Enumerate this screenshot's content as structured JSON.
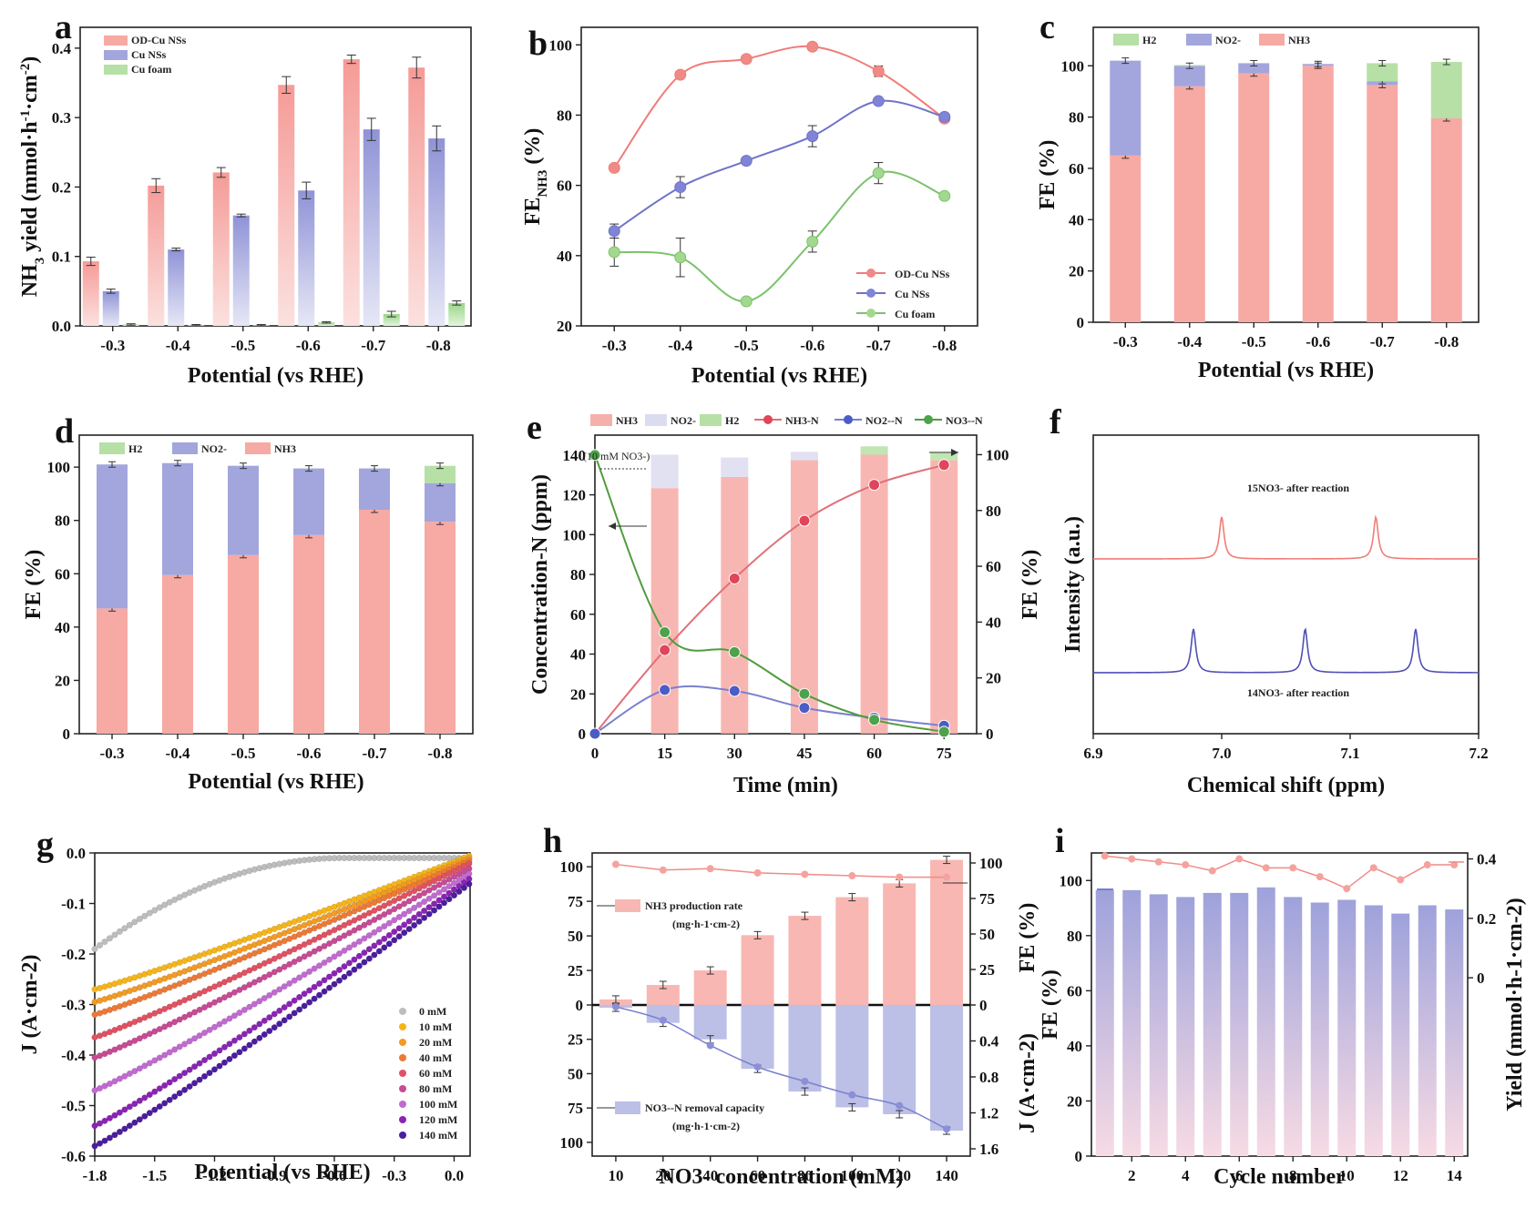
{
  "figure": {
    "colors": {
      "pink": "#f7a9a4",
      "pink_line": "#f07c78",
      "blue": "#a3a6dc",
      "blue_line": "#6f73c8",
      "green": "#b6e0a6",
      "green_line": "#7cc26c",
      "red_dot": "#e0455a",
      "navy_dot": "#4b5cc4",
      "green_dot": "#4da24a"
    }
  },
  "chart_data": [
    {
      "id": "a",
      "panel_label": "a",
      "type": "bar",
      "xlabel": "Potential (vs RHE)",
      "ylabel": "NH3 yield (mmol·h-1·cm-2)",
      "categories": [
        "-0.3",
        "-0.4",
        "-0.5",
        "-0.6",
        "-0.7",
        "-0.8"
      ],
      "ylim": [
        0,
        0.43
      ],
      "yticks": [
        "0.0",
        "0.1",
        "0.2",
        "0.3",
        "0.4"
      ],
      "series": [
        {
          "name": "OD-Cu NSs",
          "values": [
            0.093,
            0.202,
            0.221,
            0.347,
            0.384,
            0.372
          ],
          "err": [
            0.006,
            0.01,
            0.007,
            0.012,
            0.006,
            0.015
          ]
        },
        {
          "name": "Cu NSs",
          "values": [
            0.05,
            0.11,
            0.159,
            0.195,
            0.283,
            0.27
          ],
          "err": [
            0.003,
            0.002,
            0.002,
            0.012,
            0.016,
            0.018
          ]
        },
        {
          "name": "Cu foam",
          "values": [
            0.002,
            0.001,
            0.001,
            0.005,
            0.017,
            0.033
          ],
          "err": [
            0.001,
            0.001,
            0.001,
            0.001,
            0.004,
            0.003
          ]
        }
      ]
    },
    {
      "id": "b",
      "panel_label": "b",
      "type": "scatter",
      "xlabel": "Potential (vs RHE)",
      "ylabel": "FE",
      "ylabel_sub": "NH3",
      "ylabel_unit": " (%)",
      "categories": [
        "-0.3",
        "-0.4",
        "-0.5",
        "-0.6",
        "-0.7",
        "-0.8"
      ],
      "ylim": [
        20,
        105
      ],
      "yticks": [
        "20",
        "40",
        "60",
        "80",
        "100"
      ],
      "series": [
        {
          "name": "OD-Cu NSs",
          "values": [
            65,
            91.5,
            96,
            99.5,
            92.5,
            79
          ],
          "err": [
            0,
            0,
            0,
            0,
            1.5,
            0
          ]
        },
        {
          "name": "Cu NSs",
          "values": [
            47,
            59.5,
            67,
            74,
            84,
            79.5
          ],
          "err": [
            2,
            3,
            0,
            3,
            0,
            1
          ]
        },
        {
          "name": "Cu foam",
          "values": [
            41,
            39.5,
            27,
            44,
            63.5,
            57
          ],
          "err": [
            4,
            5.5,
            0,
            3,
            3,
            0
          ]
        }
      ]
    },
    {
      "id": "c",
      "panel_label": "c",
      "type": "bar",
      "xlabel": "Potential (vs RHE)",
      "ylabel": "FE (%)",
      "categories": [
        "-0.3",
        "-0.4",
        "-0.5",
        "-0.6",
        "-0.7",
        "-0.8"
      ],
      "ylim": [
        0,
        115
      ],
      "yticks": [
        "0",
        "20",
        "40",
        "60",
        "80",
        "100"
      ],
      "stacked": true,
      "series": [
        {
          "name": "NH3",
          "values": [
            65,
            92,
            97,
            100,
            92.5,
            79.5
          ]
        },
        {
          "name": "NO2-",
          "values": [
            37,
            8,
            4,
            0.7,
            1.5,
            0
          ]
        },
        {
          "name": "H2",
          "values": [
            0,
            0.3,
            0,
            0,
            7,
            22
          ]
        }
      ]
    },
    {
      "id": "d",
      "panel_label": "d",
      "type": "bar",
      "xlabel": "Potential (vs RHE)",
      "ylabel": "FE (%)",
      "categories": [
        "-0.3",
        "-0.4",
        "-0.5",
        "-0.6",
        "-0.7",
        "-0.8"
      ],
      "ylim": [
        0,
        112
      ],
      "yticks": [
        "0",
        "20",
        "40",
        "60",
        "80",
        "100"
      ],
      "stacked": true,
      "series": [
        {
          "name": "NH3",
          "values": [
            47,
            59.5,
            67,
            74.5,
            84,
            79.5
          ]
        },
        {
          "name": "NO2-",
          "values": [
            54,
            42,
            33.5,
            25,
            15.5,
            14.5
          ]
        },
        {
          "name": "H2",
          "values": [
            0,
            0,
            0,
            0,
            0,
            6.5
          ]
        }
      ]
    },
    {
      "id": "e",
      "panel_label": "e",
      "type": "line",
      "xlabel": "Time (min)",
      "ylabel": "Concentration-N (ppm)",
      "ylabel_right": "FE (%)",
      "x": [
        0,
        15,
        30,
        45,
        60,
        75
      ],
      "xticks": [
        "0",
        "15",
        "30",
        "45",
        "60",
        "75"
      ],
      "ylim": [
        0,
        150
      ],
      "yticks": [
        "0",
        "20",
        "40",
        "60",
        "80",
        "100",
        "120",
        "140"
      ],
      "y2lim": [
        0,
        107
      ],
      "y2ticks": [
        "0",
        "20",
        "40",
        "60",
        "80",
        "100"
      ],
      "annotation": "10 mM NO3-",
      "series": [
        {
          "name": "NH3-N",
          "values": [
            0,
            42,
            78,
            107,
            125,
            135
          ]
        },
        {
          "name": "NO2--N",
          "values": [
            0,
            22,
            21.5,
            13,
            8,
            4
          ]
        },
        {
          "name": "NO3--N",
          "values": [
            140,
            51,
            41,
            20,
            7,
            1
          ]
        }
      ],
      "fe_bars": {
        "categories": [
          15,
          30,
          45,
          60,
          75
        ],
        "NH3": [
          88,
          92,
          98,
          100,
          98
        ],
        "NO2-": [
          12,
          7,
          3,
          0,
          0
        ],
        "H2": [
          0,
          0,
          0,
          3,
          3
        ]
      },
      "legend": [
        "NH3",
        "NO2-",
        "H2",
        "NH3-N",
        "NO2--N",
        "NO3--N"
      ]
    },
    {
      "id": "f",
      "panel_label": "f",
      "type": "line",
      "xlabel": "Chemical shift (ppm)",
      "ylabel": "Intensity (a.u.)",
      "xlim": [
        6.9,
        7.2
      ],
      "xticks": [
        "6.9",
        "7.0",
        "7.1",
        "7.2"
      ],
      "series": [
        {
          "name": "15NO3- after reaction",
          "peaks": [
            7.0,
            7.12
          ]
        },
        {
          "name": "14NO3- after reaction",
          "peaks": [
            6.978,
            7.065,
            7.151
          ]
        }
      ]
    },
    {
      "id": "g",
      "panel_label": "g",
      "type": "scatter",
      "xlabel": "Potential (vs RHE)",
      "ylabel": "J (A·cm-2)",
      "xlim": [
        -1.8,
        0.08
      ],
      "xticks": [
        "-1.8",
        "-1.5",
        "-1.2",
        "-0.9",
        "-0.6",
        "-0.3",
        "0.0"
      ],
      "ylim": [
        -0.6,
        0.0
      ],
      "yticks": [
        "0.0",
        "-0.1",
        "-0.2",
        "-0.3",
        "-0.4",
        "-0.5",
        "-0.6"
      ],
      "series": [
        {
          "name": "0 mM",
          "y_start": -0.19,
          "y_end": -0.01,
          "shape": "sat"
        },
        {
          "name": "10 mM",
          "y_start": -0.27,
          "y_end": -0.005,
          "shape": "lin"
        },
        {
          "name": "20 mM",
          "y_start": -0.295,
          "y_end": -0.01,
          "shape": "lin"
        },
        {
          "name": "40 mM",
          "y_start": -0.32,
          "y_end": -0.015,
          "shape": "lin"
        },
        {
          "name": "60 mM",
          "y_start": -0.365,
          "y_end": -0.02,
          "shape": "lin"
        },
        {
          "name": "80 mM",
          "y_start": -0.405,
          "y_end": -0.03,
          "shape": "lin"
        },
        {
          "name": "100 mM",
          "y_start": -0.47,
          "y_end": -0.04,
          "shape": "lin"
        },
        {
          "name": "120 mM",
          "y_start": -0.54,
          "y_end": -0.05,
          "shape": "lin"
        },
        {
          "name": "140 mM",
          "y_start": -0.58,
          "y_end": -0.06,
          "shape": "lin"
        }
      ]
    },
    {
      "id": "h",
      "panel_label": "h",
      "type": "bar",
      "xlabel": "NO3- concentration (mM)",
      "categories": [
        "10",
        "20",
        "40",
        "60",
        "80",
        "100",
        "120",
        "140"
      ],
      "upper": {
        "name": "NH3 production rate",
        "unit": "(mg·h-1·cm-2)",
        "values": [
          4,
          14.5,
          25,
          50.5,
          64.5,
          78,
          88,
          105
        ],
        "ylim": [
          0,
          110
        ],
        "yticks": [
          "0",
          "25",
          "50",
          "75",
          "100"
        ],
        "fe": [
          99,
          95,
          96,
          93,
          92,
          91,
          90,
          90
        ],
        "fe_ticks": [
          "0",
          "25",
          "50",
          "75",
          "100"
        ],
        "fe_label": "FE (%)"
      },
      "lower": {
        "name": "NO3--N removal capacity",
        "unit": "(mg·h-1·cm-2)",
        "values": [
          2,
          13,
          25,
          46.5,
          63,
          74.5,
          79.5,
          91.5
        ],
        "ylim": [
          0,
          110
        ],
        "yticks": [
          "25",
          "50",
          "75",
          "100"
        ],
        "current": [
          0.02,
          0.17,
          0.45,
          0.69,
          0.85,
          1.0,
          1.12,
          1.38
        ],
        "j_ticks": [
          "0.4",
          "0.8",
          "1.2",
          "1.6"
        ],
        "j_label": "J (A·cm-2)"
      }
    },
    {
      "id": "i",
      "panel_label": "i",
      "type": "bar",
      "xlabel": "Cycle number",
      "ylabel": "FE (%)",
      "ylabel_right": "Yield (mmol·h-1·cm-2)",
      "categories": [
        "1",
        "2",
        "3",
        "4",
        "5",
        "6",
        "7",
        "8",
        "9",
        "10",
        "11",
        "12",
        "13",
        "14"
      ],
      "xticks": [
        "2",
        "4",
        "6",
        "8",
        "10",
        "12",
        "14"
      ],
      "ylim": [
        0,
        110
      ],
      "yticks": [
        "0",
        "20",
        "40",
        "60",
        "80",
        "100"
      ],
      "y2ticks": [
        "0",
        "0.2",
        "0.4"
      ],
      "fe": [
        96.5,
        96.5,
        95,
        94,
        95.5,
        95.5,
        97.5,
        94,
        92,
        93,
        91,
        88,
        91,
        89.5
      ],
      "yield": [
        0.41,
        0.4,
        0.39,
        0.38,
        0.36,
        0.4,
        0.37,
        0.37,
        0.34,
        0.3,
        0.37,
        0.33,
        0.38,
        0.38
      ]
    }
  ]
}
